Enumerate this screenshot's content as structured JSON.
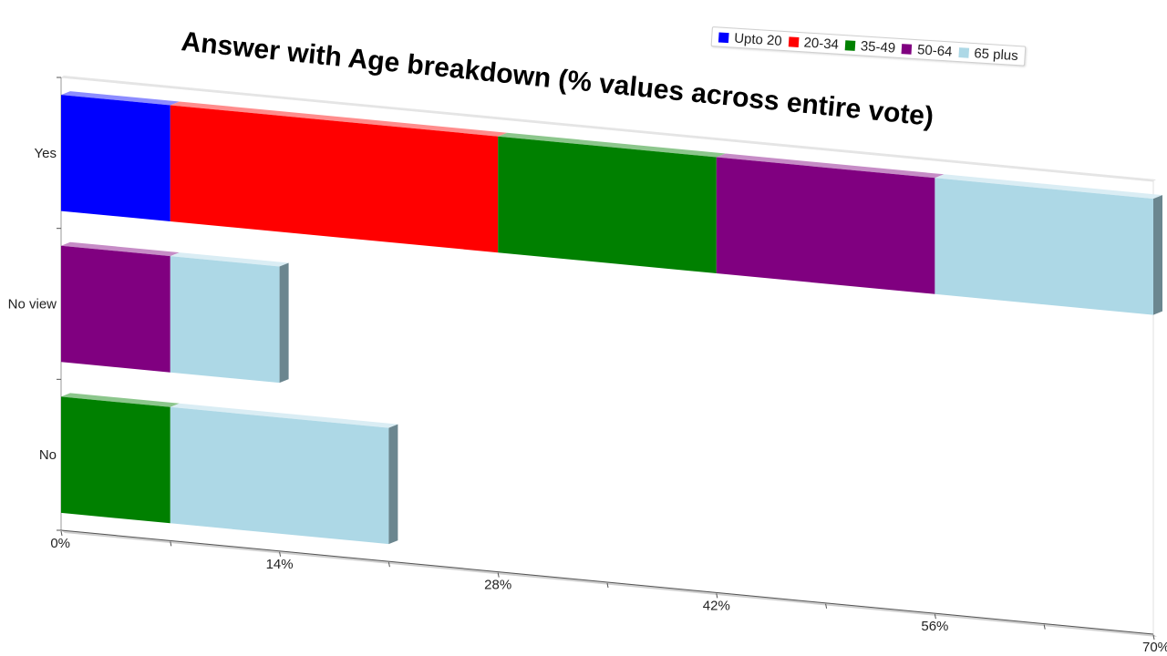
{
  "chart_data": {
    "type": "bar",
    "orientation": "horizontal",
    "stacked": true,
    "title": "Answer with Age breakdown (% values across entire vote)",
    "categories": [
      "Yes",
      "No view",
      "No"
    ],
    "series": [
      {
        "name": "Upto 20",
        "color": "#0000ff",
        "values": [
          7,
          0,
          0
        ]
      },
      {
        "name": "20-34",
        "color": "#ff0000",
        "values": [
          21,
          0,
          0
        ]
      },
      {
        "name": "35-49",
        "color": "#008000",
        "values": [
          14,
          0,
          7
        ]
      },
      {
        "name": "50-64",
        "color": "#800080",
        "values": [
          14,
          7,
          0
        ]
      },
      {
        "name": "65 plus",
        "color": "#add8e6",
        "values": [
          14,
          7,
          14
        ]
      }
    ],
    "x_ticks": [
      "0%",
      "14%",
      "28%",
      "42%",
      "56%",
      "70%"
    ],
    "xlim": [
      0,
      70
    ],
    "legend_position": "top-right",
    "grid": false
  }
}
